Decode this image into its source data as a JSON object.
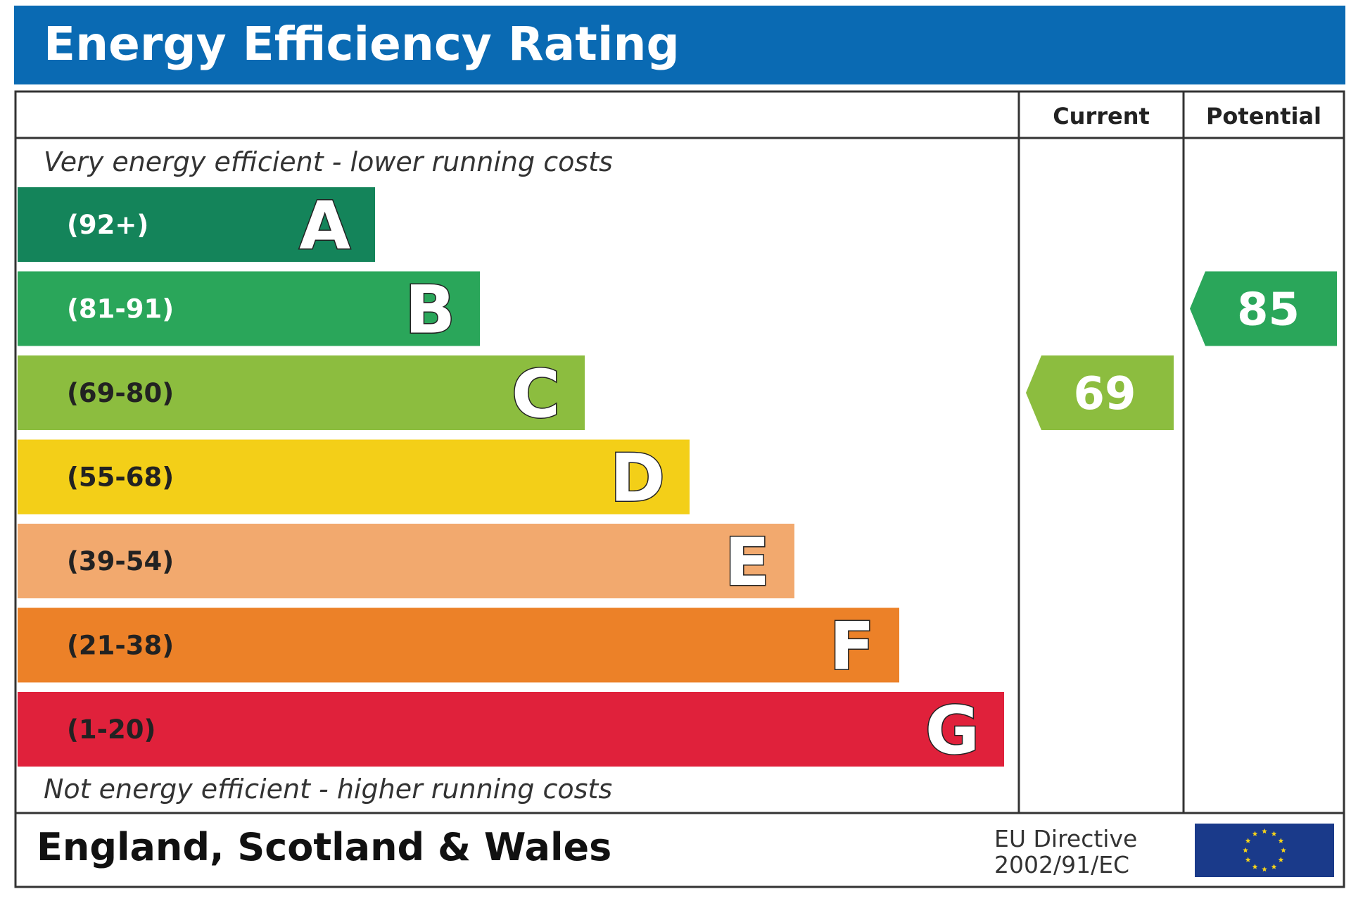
{
  "header": {
    "title": "Energy Efficiency Rating"
  },
  "columns": {
    "current": "Current",
    "potential": "Potential"
  },
  "notes": {
    "top": "Very energy efficient - lower running costs",
    "bottom": "Not energy efficient - higher running costs"
  },
  "footer": {
    "region": "England, Scotland & Wales",
    "directive_line1": "EU Directive",
    "directive_line2": "2002/91/EC"
  },
  "colors": {
    "header_blue": "#0a6ab3",
    "eu_flag_blue": "#1a3a8a",
    "eu_star_yellow": "#f4d21a"
  },
  "chart_data": {
    "type": "bar",
    "title": "Energy Efficiency Rating",
    "bands": [
      {
        "letter": "A",
        "range": "(92+)",
        "min": 92,
        "max": 100,
        "color": "#14845a"
      },
      {
        "letter": "B",
        "range": "(81-91)",
        "min": 81,
        "max": 91,
        "color": "#2aa65a"
      },
      {
        "letter": "C",
        "range": "(69-80)",
        "min": 69,
        "max": 80,
        "color": "#8cbd3f"
      },
      {
        "letter": "D",
        "range": "(55-68)",
        "min": 55,
        "max": 68,
        "color": "#f3cf18"
      },
      {
        "letter": "E",
        "range": "(39-54)",
        "min": 39,
        "max": 54,
        "color": "#f2a96e"
      },
      {
        "letter": "F",
        "range": "(21-38)",
        "min": 21,
        "max": 38,
        "color": "#ec8128"
      },
      {
        "letter": "G",
        "range": "(1-20)",
        "min": 1,
        "max": 20,
        "color": "#e0213b"
      }
    ],
    "current": {
      "value": 69,
      "band": "C",
      "color": "#8cbd3f"
    },
    "potential": {
      "value": 85,
      "band": "B",
      "color": "#2aa65a"
    }
  }
}
